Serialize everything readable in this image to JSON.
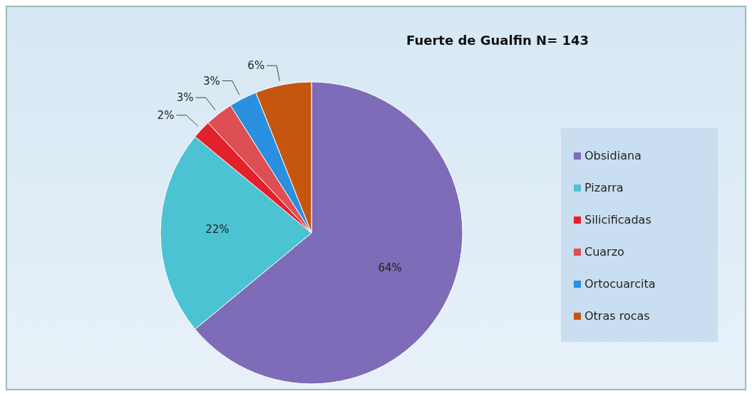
{
  "chart_data": {
    "type": "pie",
    "title": "Fuerte de Gualfin N= 143",
    "categories": [
      "Obsidiana",
      "Pizarra",
      "Silicificadas",
      "Cuarzo",
      "Ortocuarcita",
      "Otras rocas"
    ],
    "values": [
      64,
      22,
      2,
      3,
      3,
      6
    ],
    "value_labels": [
      "64%",
      "22%",
      "2%",
      "3%",
      "3%",
      "6%"
    ],
    "colors": [
      "#7f6cb8",
      "#4cc3d3",
      "#e3212b",
      "#dd4f52",
      "#2b8fe0",
      "#c4560f"
    ],
    "legend": "right"
  }
}
